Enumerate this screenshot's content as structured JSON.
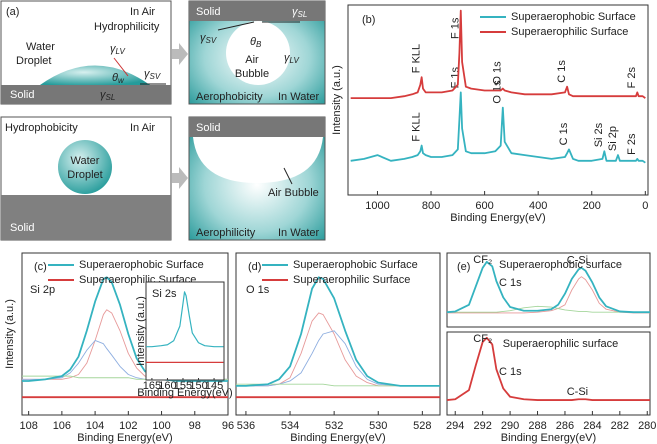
{
  "diagram": {
    "label": "(a)",
    "symbols": {
      "gamma": "γ",
      "theta": "θ"
    },
    "hydrophilic": {
      "medium": "In Air",
      "wetting": "Hydrophilicity",
      "object": [
        "Water",
        "Droplet"
      ],
      "solid": "Solid",
      "lv": "LV",
      "sv": "SV",
      "sl": "SL",
      "angle": "w"
    },
    "aerophobic": {
      "solid": "Solid",
      "sl": "SL",
      "sv": "SV",
      "angle": "B",
      "object": [
        "Air",
        "Bubble"
      ],
      "lv": "LV",
      "wetting": "Aerophobicity",
      "medium": "In Water"
    },
    "hydrophobic": {
      "wetting": "Hydrophobicity",
      "medium": "In Air",
      "object": [
        "Water",
        "Droplet"
      ],
      "solid": "Solid"
    },
    "aerophilic": {
      "solid": "Solid",
      "object": "Air Bubble",
      "wetting": "Aerophilicity",
      "medium": "In Water"
    }
  },
  "chart_data": [
    {
      "type": "line",
      "label": "(b)",
      "xlabel": "Binding Energy(eV)",
      "ylabel": "Intensity (a.u.)",
      "xlim": [
        1110,
        -10
      ],
      "ylim": [
        0,
        100
      ],
      "xticks": [
        1000,
        800,
        600,
        400,
        200,
        0
      ],
      "legend": "upper right",
      "x": [
        1100,
        1050,
        1000,
        950,
        900,
        870,
        850,
        840,
        835,
        830,
        820,
        800,
        760,
        720,
        700,
        694,
        689,
        684,
        670,
        650,
        600,
        560,
        540,
        532,
        525,
        500,
        450,
        400,
        350,
        300,
        292,
        285,
        270,
        250,
        200,
        160,
        153,
        145,
        110,
        102,
        95,
        60,
        35,
        30,
        25,
        10,
        0
      ],
      "series": [
        {
          "name": "Superaerophobic Surface",
          "color": "#35b3c0",
          "values": [
            18,
            19,
            21,
            18,
            19,
            20,
            21,
            23,
            26,
            22,
            21,
            20,
            20,
            21,
            24,
            40,
            54,
            35,
            23,
            22,
            22,
            23,
            26,
            46,
            28,
            22,
            21,
            20,
            19,
            20,
            22,
            24,
            19,
            18,
            18,
            19,
            23,
            18,
            18,
            21,
            18,
            18,
            18,
            19,
            18,
            18,
            17
          ],
          "peaks": [
            {
              "text": "F KLL",
              "x": 835
            },
            {
              "text": "F 1s",
              "x": 689
            },
            {
              "text": "O 1s",
              "x": 532
            },
            {
              "text": "C 1s",
              "x": 285
            },
            {
              "text": "Si 2s",
              "x": 153
            },
            {
              "text": "Si 2p",
              "x": 102
            },
            {
              "text": "F 2s",
              "x": 30
            }
          ]
        },
        {
          "name": "Superaerophilic Surface",
          "color": "#d63c3c",
          "values": [
            51,
            51,
            51,
            51,
            52,
            53,
            54,
            58,
            62,
            56,
            54,
            54,
            54,
            55,
            58,
            75,
            97,
            70,
            57,
            56,
            55,
            55,
            55,
            56,
            55,
            54,
            53,
            53,
            53,
            54,
            57,
            53,
            52,
            52,
            52,
            52,
            52,
            52,
            52,
            52,
            52,
            52,
            52,
            54,
            52,
            52,
            51
          ],
          "peaks": [
            {
              "text": "F KLL",
              "x": 835
            },
            {
              "text": "F 1s",
              "x": 689
            },
            {
              "text": "O 1s",
              "x": 532
            },
            {
              "text": "C 1s",
              "x": 292
            },
            {
              "text": "F 2s",
              "x": 30
            }
          ]
        }
      ]
    },
    {
      "type": "line",
      "label": "(c)",
      "annotations": [
        "Si 2p"
      ],
      "xlabel": "Binding Energy(eV)",
      "ylabel": "Intensity (a.u.)",
      "xlim": [
        108.4,
        96
      ],
      "ylim": [
        0,
        100
      ],
      "xticks": [
        108,
        106,
        104,
        102,
        100,
        98,
        96
      ],
      "legend": "upper left",
      "x": [
        108.4,
        108,
        107,
        106,
        105.5,
        105,
        104.5,
        104,
        103.5,
        103.3,
        103,
        102.5,
        102,
        101.5,
        101,
        100,
        99,
        98,
        97,
        96
      ],
      "series": [
        {
          "name": "Superaerophobic Surface",
          "color": "#35b3c0",
          "values": [
            21,
            21,
            22,
            24,
            28,
            36,
            52,
            70,
            84,
            85,
            82,
            68,
            50,
            35,
            27,
            22,
            21,
            21,
            21,
            21
          ]
        },
        {
          "name": "Superaerophilic Surface",
          "color": "#d63c3c",
          "values": [
            11,
            11,
            11,
            11,
            11,
            11,
            11,
            11,
            11,
            11,
            11,
            11,
            11,
            11,
            11,
            11,
            11,
            11,
            11,
            11
          ]
        }
      ],
      "fits": [
        {
          "color": "#e79a9a",
          "values": [
            22,
            22,
            22,
            22,
            23,
            25,
            32,
            46,
            62,
            65,
            63,
            52,
            38,
            29,
            24,
            22,
            22,
            22,
            22,
            22
          ]
        },
        {
          "color": "#8eaee0",
          "values": [
            22,
            22,
            22,
            23,
            26,
            32,
            40,
            46,
            44,
            41,
            37,
            30,
            25,
            23,
            22,
            22,
            22,
            22,
            22,
            22
          ]
        },
        {
          "color": "#a5d69c",
          "values": [
            24,
            24,
            24,
            24,
            24,
            23,
            23,
            23,
            23,
            23,
            23,
            23,
            23,
            22,
            22,
            22,
            22,
            22,
            22,
            22
          ]
        }
      ]
    },
    {
      "type": "line",
      "annotations": [
        "Si 2s"
      ],
      "xlabel": "Binding Energy(eV)",
      "ylabel": "Intensity (a.u.)",
      "xlim": [
        166.9,
        141.8
      ],
      "ylim": [
        0,
        100
      ],
      "xticks": [
        165,
        160,
        155,
        150,
        145
      ],
      "x": [
        166.9,
        165,
        162,
        160,
        158,
        156,
        155,
        154.5,
        154,
        153,
        152,
        150,
        148,
        145,
        142
      ],
      "series": [
        {
          "color": "#35b3c0",
          "values": [
            34,
            34,
            35,
            36,
            40,
            55,
            78,
            90,
            86,
            66,
            48,
            38,
            35,
            34,
            34
          ]
        },
        {
          "color": "#d63c3c",
          "values": [
            18,
            18,
            18,
            18,
            18,
            18,
            18,
            18,
            18,
            18,
            18,
            18,
            18,
            18,
            18
          ]
        }
      ]
    },
    {
      "type": "line",
      "label": "(d)",
      "annotations": [
        "O 1s"
      ],
      "xlabel": "Binding Energy(eV)",
      "xlim": [
        536.45,
        527.2
      ],
      "ylim": [
        0,
        100
      ],
      "xticks": [
        536,
        534,
        532,
        530,
        528
      ],
      "legend": "upper left",
      "x": [
        536.45,
        536,
        535,
        534.5,
        534,
        533.5,
        533,
        532.7,
        532.5,
        532,
        531.5,
        531,
        530.5,
        530,
        529,
        528,
        527.2
      ],
      "series": [
        {
          "name": "Superaerophobic Surface",
          "color": "#35b3c0",
          "values": [
            18,
            18,
            19,
            22,
            30,
            50,
            78,
            85,
            84,
            72,
            52,
            34,
            24,
            20,
            18,
            18,
            18
          ]
        },
        {
          "name": "Superaerophilic Surface",
          "color": "#d63c3c",
          "values": [
            11,
            11,
            11,
            11,
            11,
            11,
            11,
            11,
            11,
            11,
            11,
            11,
            11,
            11,
            11,
            11,
            11
          ]
        }
      ],
      "fits": [
        {
          "color": "#e79a9a",
          "values": [
            18,
            18,
            18,
            19,
            23,
            38,
            58,
            63,
            62,
            50,
            34,
            24,
            20,
            18,
            18,
            18,
            18
          ]
        },
        {
          "color": "#8eaee0",
          "values": [
            18,
            18,
            18,
            19,
            21,
            26,
            38,
            46,
            50,
            52,
            44,
            30,
            22,
            19,
            18,
            18,
            18
          ]
        },
        {
          "color": "#a5d69c",
          "values": [
            19,
            19,
            19,
            19,
            19,
            19,
            19,
            19,
            19,
            18,
            18,
            18,
            18,
            18,
            18,
            18,
            18
          ]
        }
      ]
    },
    {
      "type": "line",
      "label": "(e)",
      "annotations": [
        "C 1s"
      ],
      "legend": "upper center",
      "legend_marker": false,
      "xlim": [
        294.6,
        279.8
      ],
      "ylim": [
        0,
        100
      ],
      "x": [
        294.6,
        294,
        293,
        292.5,
        292,
        291.7,
        291.3,
        291,
        290.5,
        290,
        289,
        288,
        287,
        286.5,
        286,
        285.5,
        285,
        284.8,
        284.5,
        284,
        283.5,
        283,
        282,
        281,
        279.8
      ],
      "series": [
        {
          "name": "Superaerophobic surface",
          "color": "#35b3c0",
          "values": [
            20,
            21,
            30,
            55,
            80,
            88,
            82,
            62,
            40,
            27,
            22,
            22,
            24,
            30,
            45,
            65,
            78,
            80,
            76,
            60,
            40,
            28,
            21,
            20,
            20
          ],
          "peaks": [
            {
              "text": "CF₂",
              "x": 291.7
            },
            {
              "text": "C-Si",
              "x": 284.8
            }
          ]
        }
      ],
      "fits": [
        {
          "color": "#e79a9a",
          "values": [
            19,
            19,
            19,
            19,
            19,
            19,
            19,
            19,
            19,
            19,
            19,
            20,
            22,
            25,
            30,
            50,
            65,
            68,
            64,
            50,
            32,
            24,
            20,
            19,
            19
          ]
        },
        {
          "color": "#a5d69c",
          "values": [
            20,
            20,
            20,
            20,
            20,
            20,
            20,
            20,
            21,
            22,
            26,
            28,
            27,
            25,
            23,
            22,
            21,
            21,
            21,
            20,
            20,
            20,
            20,
            20,
            20
          ]
        }
      ]
    },
    {
      "type": "line",
      "annotations": [
        "C 1s"
      ],
      "xlabel": "Binding Energy(eV)",
      "legend": "upper center",
      "legend_marker": false,
      "xlim": [
        294.6,
        279.8
      ],
      "ylim": [
        0,
        100
      ],
      "xticks": [
        294,
        292,
        290,
        288,
        286,
        284,
        282,
        280
      ],
      "x": [
        294.6,
        294,
        293,
        292.5,
        292,
        291.7,
        291.3,
        291,
        290.5,
        290,
        289,
        288,
        287,
        286.5,
        286,
        285.5,
        285,
        284.8,
        284.5,
        284,
        283.5,
        283,
        282,
        281,
        279.8
      ],
      "series": [
        {
          "name": "Superaerophilic surface",
          "color": "#d63c3c",
          "values": [
            18,
            19,
            30,
            60,
            88,
            93,
            85,
            55,
            32,
            22,
            19,
            18,
            18,
            18,
            18,
            18,
            19,
            19,
            19,
            18,
            18,
            18,
            18,
            18,
            18
          ],
          "peaks": [
            {
              "text": "CF₂",
              "x": 291.7
            },
            {
              "text": "C-Si",
              "x": 284.8
            }
          ]
        }
      ]
    }
  ]
}
